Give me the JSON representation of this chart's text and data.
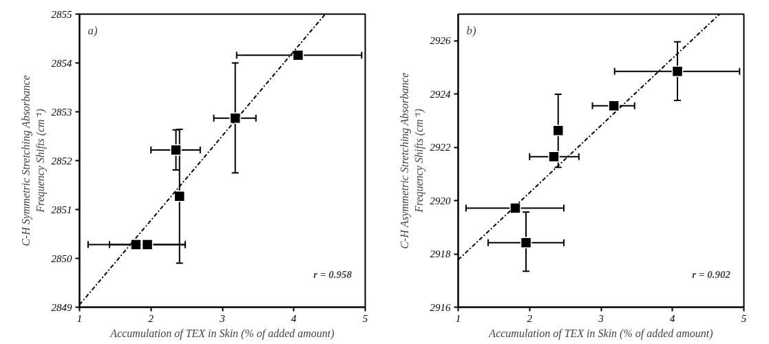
{
  "chart_data": [
    {
      "type": "scatter",
      "xlabel": "Accumulation of TEX in Skin (% of added amount)",
      "ylabel": "C-H Symmetric Stretching Absorbance\nFrequency Shifts (cm⁻¹)",
      "annotations": [
        "a)",
        "r  =  0.958"
      ],
      "xlim": [
        1,
        5
      ],
      "xticks": [
        1,
        2,
        3,
        4,
        5
      ],
      "ylim": [
        2849,
        2855
      ],
      "yticks": [
        2849,
        2850,
        2851,
        2852,
        2853,
        2854,
        2855
      ],
      "grid": false,
      "series": [
        {
          "color": "#000000",
          "marker": "square",
          "x": [
            4.06,
            3.18,
            2.35,
            2.4,
            1.79,
            1.95
          ],
          "values": [
            2854.16,
            2852.87,
            2852.22,
            2851.27,
            2850.28,
            2850.28
          ],
          "errors": [
            null,
            [
              2851.75,
              2854.0
            ],
            [
              2851.81,
              2852.63
            ],
            [
              2849.9,
              2852.64
            ],
            null,
            null
          ],
          "xerrors": [
            [
              3.2,
              4.95
            ],
            [
              2.88,
              3.47
            ],
            [
              2.0,
              2.69
            ],
            null,
            [
              1.12,
              2.48
            ],
            [
              1.42,
              2.48
            ]
          ]
        },
        {
          "type": "line",
          "color": "#000000",
          "line_style": "dashed",
          "x": [
            1,
            4.44
          ],
          "values": [
            2849.05,
            2855
          ]
        }
      ]
    },
    {
      "type": "scatter",
      "xlabel": "Accumulation of TEX in Skin (% of added amount)",
      "ylabel": "C-H Asymmetric Stretching Absorbance\nFrequency Shifts (cm⁻¹)",
      "annotations": [
        "b)",
        "r  =  0.902"
      ],
      "xlim": [
        1,
        5
      ],
      "xticks": [
        1,
        2,
        3,
        4,
        5
      ],
      "ylim": [
        2916,
        2927
      ],
      "yticks": [
        2916,
        2918,
        2920,
        2922,
        2924,
        2926
      ],
      "grid": false,
      "series": [
        {
          "color": "#000000",
          "marker": "square",
          "x": [
            4.07,
            3.18,
            2.4,
            2.34,
            1.8,
            1.95
          ],
          "values": [
            2924.85,
            2923.56,
            2922.63,
            2921.65,
            2919.72,
            2918.42
          ],
          "errors": [
            [
              2923.76,
              2925.96
            ],
            null,
            [
              2921.25,
              2923.99
            ],
            null,
            null,
            [
              2917.35,
              2919.57
            ]
          ],
          "xerrors": [
            [
              3.19,
              4.94
            ],
            [
              2.88,
              3.47
            ],
            null,
            [
              2.0,
              2.69
            ],
            [
              1.11,
              2.48
            ],
            [
              1.42,
              2.48
            ]
          ]
        },
        {
          "type": "line",
          "color": "#000000",
          "line_style": "dashed",
          "x": [
            1,
            4.66
          ],
          "values": [
            2917.78,
            2927
          ]
        }
      ]
    }
  ]
}
